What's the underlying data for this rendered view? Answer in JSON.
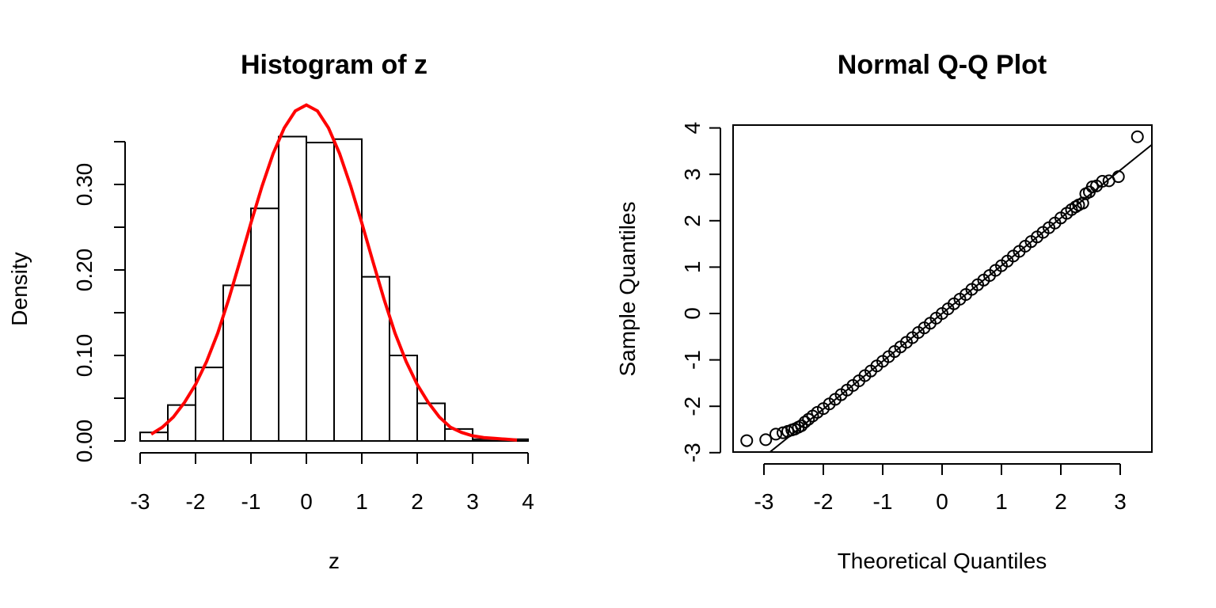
{
  "chart_data": [
    {
      "type": "bar",
      "title": "Histogram of z",
      "xlabel": "z",
      "ylabel": "Density",
      "xlim": [
        -3,
        4
      ],
      "ylim": [
        0,
        0.35
      ],
      "x_ticks": [
        "-3",
        "-2",
        "-1",
        "0",
        "1",
        "2",
        "3",
        "4"
      ],
      "y_ticks": [
        "0.00",
        "0.10",
        "0.20",
        "0.30"
      ],
      "bins": [
        {
          "from": -3.0,
          "to": -2.5,
          "density": 0.01
        },
        {
          "from": -2.5,
          "to": -2.0,
          "density": 0.042
        },
        {
          "from": -2.0,
          "to": -1.5,
          "density": 0.086
        },
        {
          "from": -1.5,
          "to": -1.0,
          "density": 0.182
        },
        {
          "from": -1.0,
          "to": -0.5,
          "density": 0.272
        },
        {
          "from": -0.5,
          "to": 0.0,
          "density": 0.356
        },
        {
          "from": 0.0,
          "to": 0.5,
          "density": 0.349
        },
        {
          "from": 0.5,
          "to": 1.0,
          "density": 0.353
        },
        {
          "from": 1.0,
          "to": 1.5,
          "density": 0.192
        },
        {
          "from": 1.5,
          "to": 2.0,
          "density": 0.1
        },
        {
          "from": 2.0,
          "to": 2.5,
          "density": 0.044
        },
        {
          "from": 2.5,
          "to": 3.0,
          "density": 0.014
        },
        {
          "from": 3.0,
          "to": 3.5,
          "density": 0.002
        },
        {
          "from": 3.5,
          "to": 4.0,
          "density": 0.002
        }
      ],
      "overlay_curve": {
        "color": "#ff0000",
        "x_range": [
          -2.8,
          3.8
        ],
        "points": [
          [
            -2.8,
            0.008
          ],
          [
            -2.6,
            0.016
          ],
          [
            -2.4,
            0.028
          ],
          [
            -2.2,
            0.045
          ],
          [
            -2.0,
            0.066
          ],
          [
            -1.8,
            0.093
          ],
          [
            -1.6,
            0.126
          ],
          [
            -1.4,
            0.166
          ],
          [
            -1.2,
            0.21
          ],
          [
            -1.0,
            0.255
          ],
          [
            -0.8,
            0.298
          ],
          [
            -0.6,
            0.336
          ],
          [
            -0.4,
            0.366
          ],
          [
            -0.2,
            0.386
          ],
          [
            0.0,
            0.393
          ],
          [
            0.2,
            0.386
          ],
          [
            0.4,
            0.366
          ],
          [
            0.6,
            0.336
          ],
          [
            0.8,
            0.298
          ],
          [
            1.0,
            0.255
          ],
          [
            1.2,
            0.21
          ],
          [
            1.4,
            0.166
          ],
          [
            1.6,
            0.126
          ],
          [
            1.8,
            0.093
          ],
          [
            2.0,
            0.066
          ],
          [
            2.2,
            0.045
          ],
          [
            2.4,
            0.028
          ],
          [
            2.6,
            0.016
          ],
          [
            2.8,
            0.01
          ],
          [
            3.0,
            0.006
          ],
          [
            3.2,
            0.004
          ],
          [
            3.4,
            0.003
          ],
          [
            3.6,
            0.002
          ],
          [
            3.8,
            0.001
          ]
        ]
      }
    },
    {
      "type": "scatter",
      "title": "Normal Q-Q Plot",
      "xlabel": "Theoretical Quantiles",
      "ylabel": "Sample Quantiles",
      "xlim": [
        -3.5,
        3.5
      ],
      "ylim": [
        -3,
        4
      ],
      "x_ticks": [
        "-3",
        "-2",
        "-1",
        "0",
        "1",
        "2",
        "3"
      ],
      "y_ticks": [
        "-3",
        "-2",
        "-1",
        "0",
        "1",
        "2",
        "3",
        "4"
      ],
      "reference_line": {
        "intercept": 0.0,
        "slope": 1.03
      },
      "points": [
        [
          -3.29,
          -2.74
        ],
        [
          -2.97,
          -2.72
        ],
        [
          -2.8,
          -2.6
        ],
        [
          -2.68,
          -2.57
        ],
        [
          -2.6,
          -2.54
        ],
        [
          -2.53,
          -2.51
        ],
        [
          -2.48,
          -2.49
        ],
        [
          -2.42,
          -2.45
        ],
        [
          -2.37,
          -2.42
        ],
        [
          -2.31,
          -2.34
        ],
        [
          -2.25,
          -2.28
        ],
        [
          -2.18,
          -2.21
        ],
        [
          -2.1,
          -2.13
        ],
        [
          -2.0,
          -2.05
        ],
        [
          -1.9,
          -1.95
        ],
        [
          -1.8,
          -1.85
        ],
        [
          -1.7,
          -1.75
        ],
        [
          -1.6,
          -1.65
        ],
        [
          -1.5,
          -1.55
        ],
        [
          -1.4,
          -1.45
        ],
        [
          -1.3,
          -1.34
        ],
        [
          -1.2,
          -1.24
        ],
        [
          -1.1,
          -1.13
        ],
        [
          -1.0,
          -1.03
        ],
        [
          -0.9,
          -0.93
        ],
        [
          -0.8,
          -0.82
        ],
        [
          -0.7,
          -0.72
        ],
        [
          -0.6,
          -0.62
        ],
        [
          -0.5,
          -0.52
        ],
        [
          -0.4,
          -0.41
        ],
        [
          -0.3,
          -0.31
        ],
        [
          -0.2,
          -0.21
        ],
        [
          -0.1,
          -0.1
        ],
        [
          0.0,
          0.0
        ],
        [
          0.1,
          0.1
        ],
        [
          0.2,
          0.21
        ],
        [
          0.3,
          0.31
        ],
        [
          0.4,
          0.41
        ],
        [
          0.5,
          0.52
        ],
        [
          0.6,
          0.62
        ],
        [
          0.7,
          0.72
        ],
        [
          0.8,
          0.82
        ],
        [
          0.9,
          0.93
        ],
        [
          1.0,
          1.03
        ],
        [
          1.1,
          1.13
        ],
        [
          1.2,
          1.24
        ],
        [
          1.3,
          1.34
        ],
        [
          1.4,
          1.45
        ],
        [
          1.5,
          1.55
        ],
        [
          1.6,
          1.65
        ],
        [
          1.7,
          1.75
        ],
        [
          1.8,
          1.85
        ],
        [
          1.9,
          1.95
        ],
        [
          2.0,
          2.06
        ],
        [
          2.1,
          2.16
        ],
        [
          2.18,
          2.24
        ],
        [
          2.25,
          2.3
        ],
        [
          2.3,
          2.34
        ],
        [
          2.37,
          2.38
        ],
        [
          2.42,
          2.58
        ],
        [
          2.48,
          2.62
        ],
        [
          2.53,
          2.73
        ],
        [
          2.6,
          2.75
        ],
        [
          2.7,
          2.85
        ],
        [
          2.81,
          2.86
        ],
        [
          2.97,
          2.95
        ],
        [
          3.29,
          3.81
        ]
      ]
    }
  ]
}
